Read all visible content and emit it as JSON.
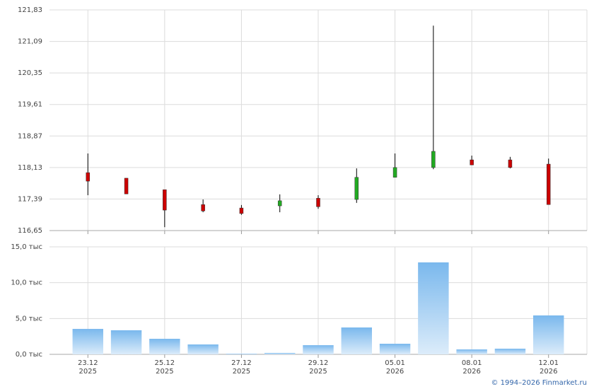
{
  "chart_data": [
    {
      "type": "candlestick",
      "open": [
        118.01,
        117.88,
        117.61,
        117.26,
        117.18,
        117.23,
        117.41,
        117.38,
        117.9,
        118.13,
        118.31,
        118.31,
        118.21
      ],
      "high": [
        118.46,
        117.88,
        117.61,
        117.38,
        117.25,
        117.5,
        117.48,
        118.11,
        118.46,
        121.46,
        118.41,
        118.38,
        118.34
      ],
      "low": [
        117.48,
        117.51,
        116.73,
        117.08,
        117.02,
        117.08,
        117.16,
        117.3,
        117.9,
        118.09,
        118.19,
        118.11,
        117.26
      ],
      "close": [
        117.81,
        117.51,
        117.13,
        117.11,
        117.05,
        117.35,
        117.21,
        117.9,
        118.13,
        118.51,
        118.19,
        118.13,
        117.26
      ],
      "up_color": "#22aa22",
      "down_color": "#cc0000",
      "ylim": [
        116.65,
        121.83
      ],
      "yticks": [
        {
          "value": 116.65,
          "label": "116,65"
        },
        {
          "value": 117.39,
          "label": "117,39"
        },
        {
          "value": 118.13,
          "label": "118,13"
        },
        {
          "value": 118.87,
          "label": "118,87"
        },
        {
          "value": 119.61,
          "label": "119,61"
        },
        {
          "value": 120.35,
          "label": "120,35"
        },
        {
          "value": 121.09,
          "label": "121,09"
        },
        {
          "value": 121.83,
          "label": "121,83"
        }
      ],
      "grid": true
    },
    {
      "type": "bar",
      "categories": [
        "23.12",
        null,
        "25.12",
        null,
        "27.12",
        null,
        "29.12",
        null,
        "05.01",
        null,
        "08.01",
        null,
        "12.01"
      ],
      "category_years": [
        "2025",
        null,
        "2025",
        null,
        "2025",
        null,
        "2025",
        null,
        "2026",
        null,
        "2026",
        null,
        "2026"
      ],
      "values": [
        3550,
        3360,
        2170,
        1380,
        100,
        200,
        1280,
        3750,
        1480,
        12830,
        690,
        790,
        5430
      ],
      "color": "#7ab8ed",
      "ylim": [
        0,
        15000
      ],
      "yticks": [
        {
          "value": 0,
          "label": "0,0 тыс"
        },
        {
          "value": 5000,
          "label": "5,0 тыс"
        },
        {
          "value": 10000,
          "label": "10,0 тыс"
        },
        {
          "value": 15000,
          "label": "15,0 тыс"
        }
      ],
      "grid": true
    }
  ],
  "footer": "© 1994–2026 Finmarket.ru"
}
